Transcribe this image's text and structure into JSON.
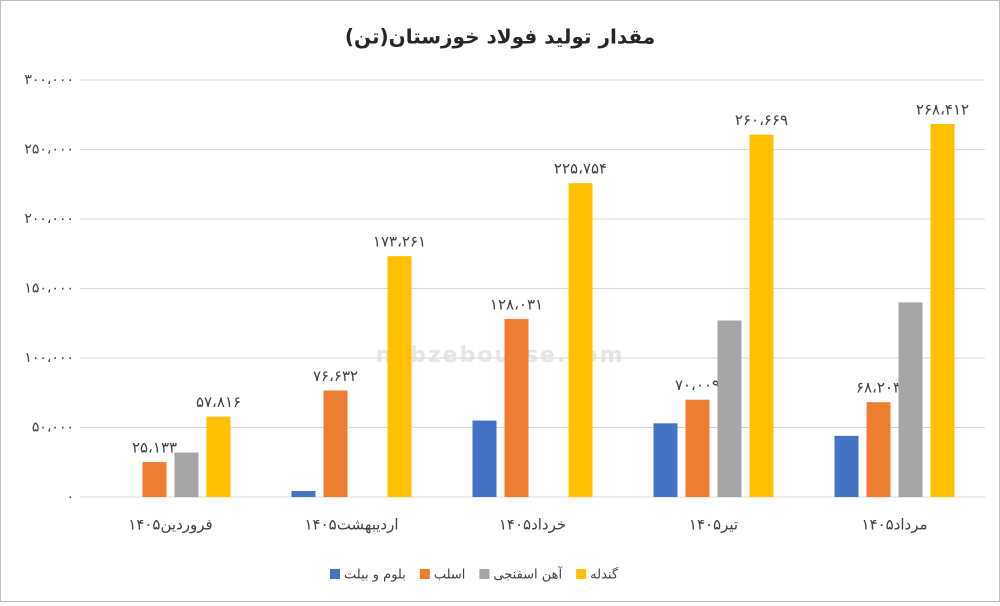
{
  "chart_data": {
    "type": "bar",
    "title": "مقدار تولید فولاد خوزستان(تن)",
    "categories": [
      "فروردین۱۴۰۵",
      "اردیبهشت۱۴۰۵",
      "خرداد۱۴۰۵",
      "تیر۱۴۰۵",
      "مرداد۱۴۰۵"
    ],
    "series": [
      {
        "name": "بلوم و بیلت",
        "color": "#4472c4",
        "values": [
          null,
          4300,
          55000,
          53000,
          44000
        ]
      },
      {
        "name": "اسلب",
        "color": "#ed7d31",
        "values": [
          25133,
          76632,
          128031,
          70009,
          68203
        ],
        "value_labels": [
          "۲۵،۱۳۳",
          "۷۶،۶۳۲",
          "۱۲۸،۰۳۱",
          "۷۰،۰۰۹",
          "۶۸،۲۰۳"
        ]
      },
      {
        "name": "آهن اسفنجی",
        "color": "#a5a5a5",
        "values": [
          32000,
          null,
          null,
          127000,
          140000
        ]
      },
      {
        "name": "گندله",
        "color": "#ffc000",
        "values": [
          57816,
          173261,
          225754,
          260669,
          268412
        ],
        "value_labels": [
          "۵۷،۸۱۶",
          "۱۷۳،۲۶۱",
          "۲۲۵،۷۵۴",
          "۲۶۰،۶۶۹",
          "۲۶۸،۴۱۲"
        ]
      }
    ],
    "ylim": [
      0,
      300000
    ],
    "yticks": [
      {
        "value": 0,
        "label": "۰"
      },
      {
        "value": 50000,
        "label": "۵۰،۰۰۰"
      },
      {
        "value": 100000,
        "label": "۱۰۰،۰۰۰"
      },
      {
        "value": 150000,
        "label": "۱۵۰،۰۰۰"
      },
      {
        "value": 200000,
        "label": "۲۰۰،۰۰۰"
      },
      {
        "value": 250000,
        "label": "۲۵۰،۰۰۰"
      },
      {
        "value": 300000,
        "label": "۳۰۰،۰۰۰"
      }
    ],
    "grid": true,
    "legend": "bottom",
    "watermark": "nabzebourse.com"
  }
}
